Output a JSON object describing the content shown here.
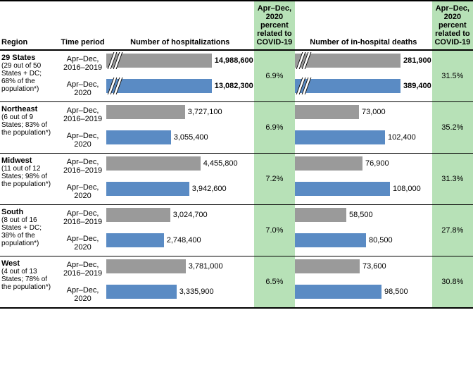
{
  "headers": {
    "region": "Region",
    "period": "Time period",
    "hosp": "Number of hospitalizations",
    "deaths": "Number of in-hospital deaths",
    "pct": "Apr–Dec, 2020 percent related to COVID-19"
  },
  "periods": {
    "p1": "Apr–Dec, 2016–2019",
    "p2": "Apr–Dec, 2020"
  },
  "colors": {
    "gray": "#9a9a9a",
    "blue": "#5a8bc4",
    "green": "#b7e1b7"
  },
  "max": {
    "hosp": 5000000,
    "deaths": 120000
  },
  "rows": [
    {
      "title": "29 States",
      "sub": "(29 out of 50 States + DC; 68% of the population*)",
      "brk": true,
      "hosp1": 14988600,
      "hosp2": 13082300,
      "hosp1s": "14,988,600",
      "hosp2s": "13,082,300",
      "hpct": "6.9%",
      "d1": 281900,
      "d2": 389400,
      "d1s": "281,900",
      "d2s": "389,400",
      "dpct": "31.5%"
    },
    {
      "title": "Northeast",
      "sub": "(6 out of 9 States; 83% of the population*)",
      "brk": false,
      "hosp1": 3727100,
      "hosp2": 3055400,
      "hosp1s": "3,727,100",
      "hosp2s": "3,055,400",
      "hpct": "6.9%",
      "d1": 73000,
      "d2": 102400,
      "d1s": "73,000",
      "d2s": "102,400",
      "dpct": "35.2%"
    },
    {
      "title": "Midwest",
      "sub": "(11 out of 12 States; 98% of the population*)",
      "brk": false,
      "hosp1": 4455800,
      "hosp2": 3942600,
      "hosp1s": "4,455,800",
      "hosp2s": "3,942,600",
      "hpct": "7.2%",
      "d1": 76900,
      "d2": 108000,
      "d1s": "76,900",
      "d2s": "108,000",
      "dpct": "31.3%"
    },
    {
      "title": "South",
      "sub": "(8 out of 16 States + DC; 38% of the population*)",
      "brk": false,
      "hosp1": 3024700,
      "hosp2": 2748400,
      "hosp1s": "3,024,700",
      "hosp2s": "2,748,400",
      "hpct": "7.0%",
      "d1": 58500,
      "d2": 80500,
      "d1s": "58,500",
      "d2s": "80,500",
      "dpct": "27.8%"
    },
    {
      "title": "West",
      "sub": "(4 out of 13 States; 78% of the population*)",
      "brk": false,
      "hosp1": 3781000,
      "hosp2": 3335900,
      "hosp1s": "3,781,000",
      "hosp2s": "3,335,900",
      "hpct": "6.5%",
      "d1": 73600,
      "d2": 98500,
      "d1s": "73,600",
      "d2s": "98,500",
      "dpct": "30.8%"
    }
  ],
  "barAreaPx": 150
}
